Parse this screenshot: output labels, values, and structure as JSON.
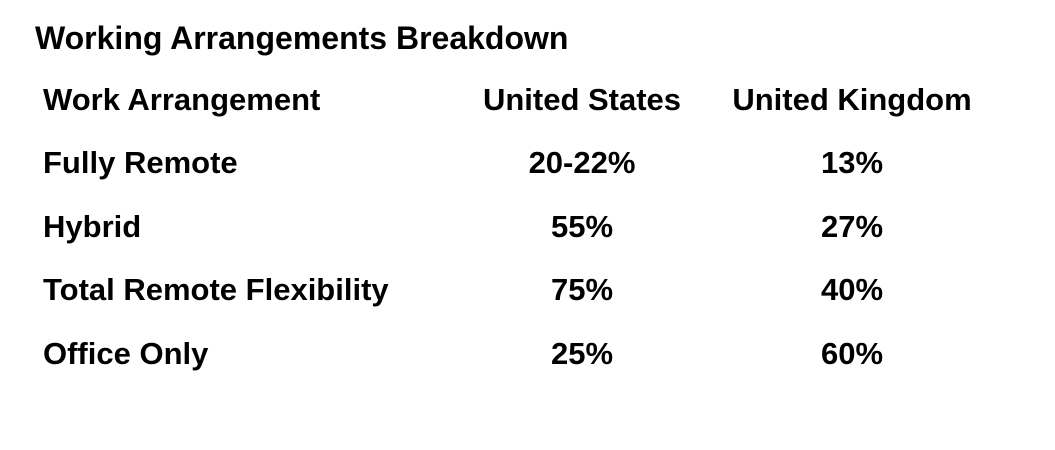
{
  "header": {
    "title": "Working Arrangements Breakdown"
  },
  "table": {
    "columns": [
      "Work Arrangement",
      "United States",
      "United Kingdom"
    ],
    "rows": [
      [
        "Fully Remote",
        "20-22%",
        "13%"
      ],
      [
        "Hybrid",
        "55%",
        "27%"
      ],
      [
        "Total Remote Flexibility",
        "75%",
        "40%"
      ],
      [
        "Office Only",
        "25%",
        "60%"
      ]
    ]
  }
}
